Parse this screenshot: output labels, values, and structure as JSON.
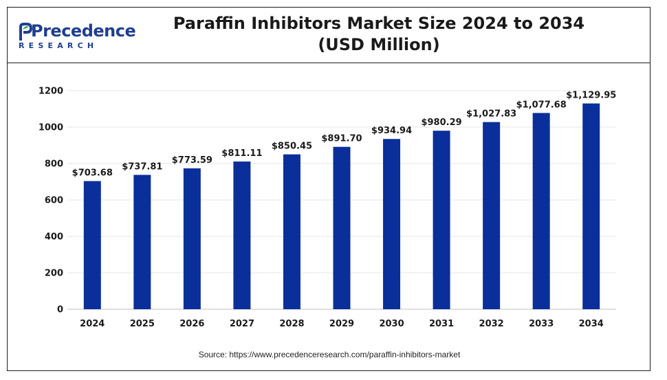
{
  "brand": {
    "name": "Precedence",
    "tagline": "RESEARCH"
  },
  "chart_data": {
    "type": "bar",
    "title": "Paraffin Inhibitors Market Size 2024 to 2034",
    "subtitle": "(USD Million)",
    "categories": [
      "2024",
      "2025",
      "2026",
      "2027",
      "2028",
      "2029",
      "2030",
      "2031",
      "2032",
      "2033",
      "2034"
    ],
    "values": [
      703.68,
      737.81,
      773.59,
      811.11,
      850.45,
      891.7,
      934.94,
      980.29,
      1027.83,
      1077.68,
      1129.95
    ],
    "data_labels": [
      "$703.68",
      "$737.81",
      "$773.59",
      "$811.11",
      "$850.45",
      "$891.70",
      "$934.94",
      "$980.29",
      "$1,027.83",
      "$1,077.68",
      "$1,129.95"
    ],
    "y_ticks": [
      "0",
      "200",
      "400",
      "600",
      "800",
      "1000",
      "1200"
    ],
    "ylim": [
      0,
      1200
    ],
    "xlabel": "",
    "ylabel": "",
    "bar_color": "#0a2f9b",
    "grid": true
  },
  "source": "Source: https://www.precedenceresearch.com/paraffin-inhibitors-market"
}
